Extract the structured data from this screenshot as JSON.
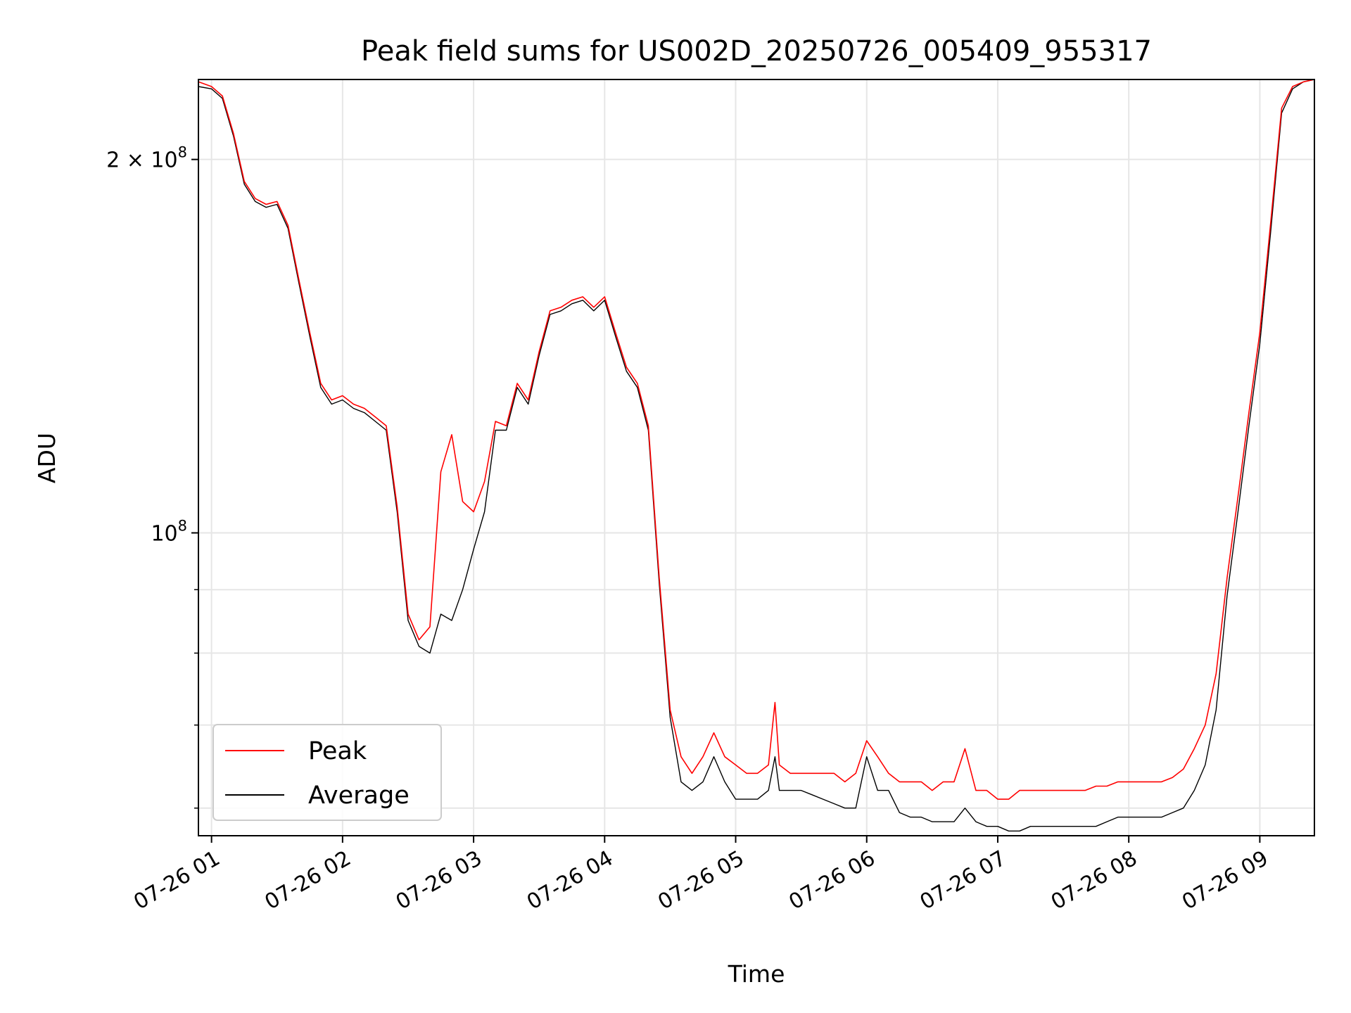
{
  "chart_data": {
    "type": "line",
    "title": "Peak field sums for US002D_20250726_005409_955317",
    "xlabel": "Time",
    "ylabel": "ADU",
    "yscale": "log",
    "grid": true,
    "legend_placement": "lower-left",
    "colors": {
      "Peak": "#ff0000",
      "Average": "#000000",
      "grid": "#e6e6e6"
    },
    "x_ticks": [
      "07-26 01",
      "07-26 02",
      "07-26 03",
      "07-26 04",
      "07-26 05",
      "07-26 06",
      "07-26 07",
      "07-26 08",
      "07-26 09"
    ],
    "y_ticks_major": [
      {
        "value": 100000000,
        "label": "10^8"
      },
      {
        "value": 200000000,
        "label": "2 × 10^8"
      }
    ],
    "y_ticks_minor": [
      60000000,
      70000000,
      80000000,
      90000000
    ],
    "xlim": [
      "2025-07-26 00:54",
      "2025-07-26 09:25"
    ],
    "ylim": [
      57000000,
      232000000
    ],
    "series": [
      {
        "name": "Peak",
        "x": [
          "2025-07-26 00:54",
          "2025-07-26 01:00",
          "2025-07-26 01:05",
          "2025-07-26 01:10",
          "2025-07-26 01:15",
          "2025-07-26 01:20",
          "2025-07-26 01:25",
          "2025-07-26 01:30",
          "2025-07-26 01:35",
          "2025-07-26 01:40",
          "2025-07-26 01:45",
          "2025-07-26 01:50",
          "2025-07-26 01:55",
          "2025-07-26 02:00",
          "2025-07-26 02:05",
          "2025-07-26 02:10",
          "2025-07-26 02:15",
          "2025-07-26 02:20",
          "2025-07-26 02:25",
          "2025-07-26 02:30",
          "2025-07-26 02:35",
          "2025-07-26 02:40",
          "2025-07-26 02:45",
          "2025-07-26 02:50",
          "2025-07-26 02:55",
          "2025-07-26 03:00",
          "2025-07-26 03:05",
          "2025-07-26 03:10",
          "2025-07-26 03:15",
          "2025-07-26 03:20",
          "2025-07-26 03:25",
          "2025-07-26 03:30",
          "2025-07-26 03:35",
          "2025-07-26 03:40",
          "2025-07-26 03:45",
          "2025-07-26 03:50",
          "2025-07-26 03:55",
          "2025-07-26 04:00",
          "2025-07-26 04:05",
          "2025-07-26 04:10",
          "2025-07-26 04:15",
          "2025-07-26 04:20",
          "2025-07-26 04:25",
          "2025-07-26 04:30",
          "2025-07-26 04:35",
          "2025-07-26 04:40",
          "2025-07-26 04:45",
          "2025-07-26 04:50",
          "2025-07-26 04:55",
          "2025-07-26 05:00",
          "2025-07-26 05:05",
          "2025-07-26 05:10",
          "2025-07-26 05:15",
          "2025-07-26 05:18",
          "2025-07-26 05:20",
          "2025-07-26 05:25",
          "2025-07-26 05:30",
          "2025-07-26 05:35",
          "2025-07-26 05:40",
          "2025-07-26 05:45",
          "2025-07-26 05:50",
          "2025-07-26 05:55",
          "2025-07-26 06:00",
          "2025-07-26 06:05",
          "2025-07-26 06:10",
          "2025-07-26 06:15",
          "2025-07-26 06:20",
          "2025-07-26 06:25",
          "2025-07-26 06:30",
          "2025-07-26 06:35",
          "2025-07-26 06:40",
          "2025-07-26 06:45",
          "2025-07-26 06:50",
          "2025-07-26 06:55",
          "2025-07-26 07:00",
          "2025-07-26 07:05",
          "2025-07-26 07:10",
          "2025-07-26 07:15",
          "2025-07-26 07:20",
          "2025-07-26 07:25",
          "2025-07-26 07:30",
          "2025-07-26 07:35",
          "2025-07-26 07:40",
          "2025-07-26 07:45",
          "2025-07-26 07:50",
          "2025-07-26 07:55",
          "2025-07-26 08:00",
          "2025-07-26 08:05",
          "2025-07-26 08:10",
          "2025-07-26 08:15",
          "2025-07-26 08:20",
          "2025-07-26 08:25",
          "2025-07-26 08:30",
          "2025-07-26 08:35",
          "2025-07-26 08:40",
          "2025-07-26 08:45",
          "2025-07-26 08:50",
          "2025-07-26 08:55",
          "2025-07-26 09:00",
          "2025-07-26 09:05",
          "2025-07-26 09:10",
          "2025-07-26 09:15",
          "2025-07-26 09:20",
          "2025-07-26 09:25"
        ],
        "y": [
          231000000,
          229000000,
          225000000,
          210000000,
          192000000,
          186000000,
          184000000,
          185000000,
          177000000,
          160000000,
          145000000,
          132000000,
          128000000,
          129000000,
          127000000,
          126000000,
          124000000,
          122000000,
          105000000,
          86000000,
          82000000,
          84000000,
          112000000,
          120000000,
          106000000,
          104000000,
          110000000,
          123000000,
          122000000,
          132000000,
          128000000,
          140000000,
          151000000,
          152000000,
          154000000,
          155000000,
          152000000,
          155000000,
          145000000,
          136000000,
          132000000,
          122000000,
          92000000,
          72000000,
          66000000,
          64000000,
          66000000,
          69000000,
          66000000,
          65000000,
          64000000,
          64000000,
          65000000,
          73000000,
          65000000,
          64000000,
          64000000,
          64000000,
          64000000,
          64000000,
          63000000,
          64000000,
          68000000,
          66000000,
          64000000,
          63000000,
          63000000,
          63000000,
          62000000,
          63000000,
          63000000,
          67000000,
          62000000,
          62000000,
          61000000,
          61000000,
          62000000,
          62000000,
          62000000,
          62000000,
          62000000,
          62000000,
          62000000,
          62500000,
          62500000,
          63000000,
          63000000,
          63000000,
          63000000,
          63000000,
          63500000,
          64500000,
          67000000,
          70000000,
          77000000,
          92000000,
          107000000,
          125000000,
          145000000,
          178000000,
          220000000,
          229000000,
          231000000,
          232000000
        ]
      },
      {
        "name": "Average",
        "x": [
          "2025-07-26 00:54",
          "2025-07-26 01:00",
          "2025-07-26 01:05",
          "2025-07-26 01:10",
          "2025-07-26 01:15",
          "2025-07-26 01:20",
          "2025-07-26 01:25",
          "2025-07-26 01:30",
          "2025-07-26 01:35",
          "2025-07-26 01:40",
          "2025-07-26 01:45",
          "2025-07-26 01:50",
          "2025-07-26 01:55",
          "2025-07-26 02:00",
          "2025-07-26 02:05",
          "2025-07-26 02:10",
          "2025-07-26 02:15",
          "2025-07-26 02:20",
          "2025-07-26 02:25",
          "2025-07-26 02:30",
          "2025-07-26 02:35",
          "2025-07-26 02:40",
          "2025-07-26 02:45",
          "2025-07-26 02:50",
          "2025-07-26 02:55",
          "2025-07-26 03:00",
          "2025-07-26 03:05",
          "2025-07-26 03:10",
          "2025-07-26 03:15",
          "2025-07-26 03:20",
          "2025-07-26 03:25",
          "2025-07-26 03:30",
          "2025-07-26 03:35",
          "2025-07-26 03:40",
          "2025-07-26 03:45",
          "2025-07-26 03:50",
          "2025-07-26 03:55",
          "2025-07-26 04:00",
          "2025-07-26 04:05",
          "2025-07-26 04:10",
          "2025-07-26 04:15",
          "2025-07-26 04:20",
          "2025-07-26 04:25",
          "2025-07-26 04:30",
          "2025-07-26 04:35",
          "2025-07-26 04:40",
          "2025-07-26 04:45",
          "2025-07-26 04:50",
          "2025-07-26 04:55",
          "2025-07-26 05:00",
          "2025-07-26 05:05",
          "2025-07-26 05:10",
          "2025-07-26 05:15",
          "2025-07-26 05:18",
          "2025-07-26 05:20",
          "2025-07-26 05:25",
          "2025-07-26 05:30",
          "2025-07-26 05:35",
          "2025-07-26 05:40",
          "2025-07-26 05:45",
          "2025-07-26 05:50",
          "2025-07-26 05:55",
          "2025-07-26 06:00",
          "2025-07-26 06:05",
          "2025-07-26 06:10",
          "2025-07-26 06:15",
          "2025-07-26 06:20",
          "2025-07-26 06:25",
          "2025-07-26 06:30",
          "2025-07-26 06:35",
          "2025-07-26 06:40",
          "2025-07-26 06:45",
          "2025-07-26 06:50",
          "2025-07-26 06:55",
          "2025-07-26 07:00",
          "2025-07-26 07:05",
          "2025-07-26 07:10",
          "2025-07-26 07:15",
          "2025-07-26 07:20",
          "2025-07-26 07:25",
          "2025-07-26 07:30",
          "2025-07-26 07:35",
          "2025-07-26 07:40",
          "2025-07-26 07:45",
          "2025-07-26 07:50",
          "2025-07-26 07:55",
          "2025-07-26 08:00",
          "2025-07-26 08:05",
          "2025-07-26 08:10",
          "2025-07-26 08:15",
          "2025-07-26 08:20",
          "2025-07-26 08:25",
          "2025-07-26 08:30",
          "2025-07-26 08:35",
          "2025-07-26 08:40",
          "2025-07-26 08:45",
          "2025-07-26 08:50",
          "2025-07-26 08:55",
          "2025-07-26 09:00",
          "2025-07-26 09:05",
          "2025-07-26 09:10",
          "2025-07-26 09:15",
          "2025-07-26 09:20",
          "2025-07-26 09:25"
        ],
        "y": [
          229000000,
          228000000,
          224000000,
          209000000,
          191000000,
          185000000,
          183000000,
          184000000,
          176000000,
          159000000,
          144000000,
          131000000,
          127000000,
          128000000,
          126000000,
          125000000,
          123000000,
          121000000,
          104000000,
          85000000,
          81000000,
          80000000,
          86000000,
          85000000,
          90000000,
          97000000,
          104000000,
          121000000,
          121000000,
          131000000,
          127000000,
          139000000,
          150000000,
          151000000,
          153000000,
          154000000,
          151000000,
          154000000,
          144000000,
          135000000,
          131000000,
          121000000,
          91000000,
          71000000,
          63000000,
          62000000,
          63000000,
          66000000,
          63000000,
          61000000,
          61000000,
          61000000,
          62000000,
          66000000,
          62000000,
          62000000,
          62000000,
          61500000,
          61000000,
          60500000,
          60000000,
          60000000,
          66000000,
          62000000,
          62000000,
          59500000,
          59000000,
          59000000,
          58500000,
          58500000,
          58500000,
          60000000,
          58500000,
          58000000,
          58000000,
          57500000,
          57500000,
          58000000,
          58000000,
          58000000,
          58000000,
          58000000,
          58000000,
          58000000,
          58500000,
          59000000,
          59000000,
          59000000,
          59000000,
          59000000,
          59500000,
          60000000,
          62000000,
          65000000,
          72000000,
          89000000,
          104000000,
          122000000,
          142000000,
          175000000,
          218000000,
          228000000,
          231000000,
          232000000
        ]
      }
    ]
  }
}
